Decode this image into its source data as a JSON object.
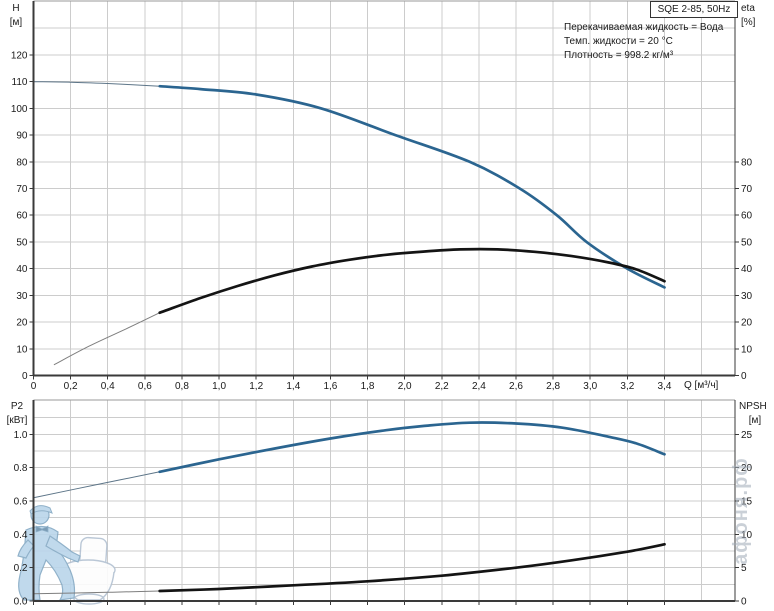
{
  "header": {
    "model": "SQE 2-85, 50Hz"
  },
  "info": {
    "lines": [
      "Перекачиваемая жидкость = Вода",
      "Темп. жидкости = 20 °C",
      "Плотность = 998.2 кг/м³"
    ]
  },
  "watermark": {
    "text": "афоня.рф"
  },
  "colors": {
    "curve_blue": "#2b6590",
    "curve_black": "#141414",
    "thin_blue": "#5d7588",
    "thin_black": "#7e7e7e",
    "grid": "#cccccc",
    "axis": "#3a3a3a",
    "frame_light": "#9a9a9a",
    "watermark_fill": "#bad5ea",
    "watermark_stroke": "#84a9c4",
    "toilet_stroke": "#b3c2d2"
  },
  "axes": {
    "top": {
      "left_label": "H",
      "left_unit": "[м]",
      "right_label": "eta",
      "right_unit": "[%]",
      "x_label": "Q [м³/ч]"
    },
    "bottom": {
      "left_label": "P2",
      "left_unit": "[кВт]",
      "right_label": "NPSH",
      "right_unit": "[м]"
    }
  },
  "chart_data": [
    {
      "type": "line",
      "title": "SQE 2-85, 50Hz",
      "xlabel": "Q [м³/ч]",
      "ylabel_left": "H [м]",
      "ylabel_right": "eta [%]",
      "xlim": [
        0,
        3.78
      ],
      "ylim_left": [
        0,
        140.2
      ],
      "ylim_right": [
        0,
        140.2
      ],
      "grid": true,
      "x_ticks": [
        {
          "v": 0,
          "t": "0"
        },
        {
          "v": 0.2,
          "t": "0,2"
        },
        {
          "v": 0.4,
          "t": "0,4"
        },
        {
          "v": 0.6,
          "t": "0,6"
        },
        {
          "v": 0.8,
          "t": "0,8"
        },
        {
          "v": 1.0,
          "t": "1,0"
        },
        {
          "v": 1.2,
          "t": "1,2"
        },
        {
          "v": 1.4,
          "t": "1,4"
        },
        {
          "v": 1.6,
          "t": "1,6"
        },
        {
          "v": 1.8,
          "t": "1,8"
        },
        {
          "v": 2.0,
          "t": "2,0"
        },
        {
          "v": 2.2,
          "t": "2,2"
        },
        {
          "v": 2.4,
          "t": "2,4"
        },
        {
          "v": 2.6,
          "t": "2,6"
        },
        {
          "v": 2.8,
          "t": "2,8"
        },
        {
          "v": 3.0,
          "t": "3,0"
        },
        {
          "v": 3.2,
          "t": "3,2"
        },
        {
          "v": 3.4,
          "t": "3,4"
        }
      ],
      "left_ticks": [
        {
          "v": 0,
          "t": "0"
        },
        {
          "v": 10,
          "t": "10"
        },
        {
          "v": 20,
          "t": "20"
        },
        {
          "v": 30,
          "t": "30"
        },
        {
          "v": 40,
          "t": "40"
        },
        {
          "v": 50,
          "t": "50"
        },
        {
          "v": 60,
          "t": "60"
        },
        {
          "v": 70,
          "t": "70"
        },
        {
          "v": 80,
          "t": "80"
        },
        {
          "v": 90,
          "t": "90"
        },
        {
          "v": 100,
          "t": "100"
        },
        {
          "v": 110,
          "t": "110"
        },
        {
          "v": 120,
          "t": "120"
        }
      ],
      "right_ticks": [
        {
          "v": 0,
          "t": "0"
        },
        {
          "v": 10,
          "t": "10"
        },
        {
          "v": 20,
          "t": "20"
        },
        {
          "v": 30,
          "t": "30"
        },
        {
          "v": 40,
          "t": "40"
        },
        {
          "v": 50,
          "t": "50"
        },
        {
          "v": 60,
          "t": "60"
        },
        {
          "v": 70,
          "t": "70"
        },
        {
          "v": 80,
          "t": "80"
        }
      ],
      "series": [
        {
          "name": "H",
          "axis": "left",
          "color_key": "curve_blue",
          "thin_color_key": "thin_blue",
          "thin_until_q": 0.68,
          "points": [
            [
              0,
              110
            ],
            [
              0.2,
              109.8
            ],
            [
              0.4,
              109.3
            ],
            [
              0.68,
              108.3
            ],
            [
              0.9,
              107.2
            ],
            [
              1.2,
              105.2
            ],
            [
              1.55,
              100
            ],
            [
              1.95,
              90
            ],
            [
              2.35,
              80
            ],
            [
              2.62,
              70
            ],
            [
              2.82,
              60
            ],
            [
              2.98,
              50
            ],
            [
              3.2,
              40
            ],
            [
              3.4,
              33
            ]
          ]
        },
        {
          "name": "eta",
          "axis": "left",
          "color_key": "curve_black",
          "thin_color_key": "thin_black",
          "thin_until_q": 0.68,
          "points": [
            [
              0.11,
              4
            ],
            [
              0.3,
              11
            ],
            [
              0.5,
              17.5
            ],
            [
              0.68,
              23.5
            ],
            [
              0.9,
              29
            ],
            [
              1.1,
              33.5
            ],
            [
              1.3,
              37.5
            ],
            [
              1.5,
              40.8
            ],
            [
              1.7,
              43.3
            ],
            [
              1.9,
              45.2
            ],
            [
              2.1,
              46.4
            ],
            [
              2.3,
              47.2
            ],
            [
              2.5,
              47.2
            ],
            [
              2.7,
              46.3
            ],
            [
              2.9,
              44.7
            ],
            [
              3.1,
              42.3
            ],
            [
              3.25,
              39.7
            ],
            [
              3.4,
              35.3
            ]
          ]
        }
      ],
      "annotations": [
        "Перекачиваемая жидкость = Вода",
        "Темп. жидкости = 20 °C",
        "Плотность = 998.2 кг/м³"
      ]
    },
    {
      "type": "line",
      "title": "",
      "xlabel": "",
      "ylabel_left": "P2 [кВт]",
      "ylabel_right": "NPSH [м]",
      "xlim": [
        0,
        3.78
      ],
      "ylim_left": [
        0,
        1.206
      ],
      "ylim_right": [
        0,
        30.15
      ],
      "grid": true,
      "x_ticks": [
        {
          "v": 0,
          "t": ""
        },
        {
          "v": 0.2,
          "t": ""
        },
        {
          "v": 0.4,
          "t": ""
        },
        {
          "v": 0.6,
          "t": ""
        },
        {
          "v": 0.8,
          "t": ""
        },
        {
          "v": 1.0,
          "t": ""
        },
        {
          "v": 1.2,
          "t": ""
        },
        {
          "v": 1.4,
          "t": ""
        },
        {
          "v": 1.6,
          "t": ""
        },
        {
          "v": 1.8,
          "t": ""
        },
        {
          "v": 2.0,
          "t": ""
        },
        {
          "v": 2.2,
          "t": ""
        },
        {
          "v": 2.4,
          "t": ""
        },
        {
          "v": 2.6,
          "t": ""
        },
        {
          "v": 2.8,
          "t": ""
        },
        {
          "v": 3.0,
          "t": ""
        },
        {
          "v": 3.2,
          "t": ""
        },
        {
          "v": 3.4,
          "t": ""
        }
      ],
      "left_ticks": [
        {
          "v": 0,
          "t": "0.0"
        },
        {
          "v": 0.2,
          "t": "0.2"
        },
        {
          "v": 0.4,
          "t": "0.4"
        },
        {
          "v": 0.6,
          "t": "0.6"
        },
        {
          "v": 0.8,
          "t": "0.8"
        },
        {
          "v": 1.0,
          "t": "1.0"
        }
      ],
      "right_ticks": [
        {
          "v": 0,
          "t": "0"
        },
        {
          "v": 5,
          "t": "5"
        },
        {
          "v": 10,
          "t": "10"
        },
        {
          "v": 15,
          "t": "15"
        },
        {
          "v": 20,
          "t": "20"
        },
        {
          "v": 25,
          "t": "25"
        }
      ],
      "series": [
        {
          "name": "P2",
          "axis": "left",
          "color_key": "curve_blue",
          "thin_color_key": "thin_blue",
          "thin_until_q": 0.68,
          "points": [
            [
              0,
              0.62
            ],
            [
              0.35,
              0.7
            ],
            [
              0.68,
              0.775
            ],
            [
              1.0,
              0.85
            ],
            [
              1.3,
              0.915
            ],
            [
              1.6,
              0.975
            ],
            [
              1.9,
              1.025
            ],
            [
              2.1,
              1.05
            ],
            [
              2.35,
              1.07
            ],
            [
              2.6,
              1.065
            ],
            [
              2.85,
              1.04
            ],
            [
              3.1,
              0.985
            ],
            [
              3.25,
              0.945
            ],
            [
              3.4,
              0.88
            ]
          ]
        },
        {
          "name": "NPSH",
          "axis": "right",
          "color_key": "curve_black",
          "thin_color_key": "thin_black",
          "thin_until_q": 0.68,
          "points": [
            [
              0,
              1.1
            ],
            [
              0.4,
              1.3
            ],
            [
              0.68,
              1.5
            ],
            [
              1.0,
              1.8
            ],
            [
              1.4,
              2.35
            ],
            [
              1.8,
              2.95
            ],
            [
              2.2,
              3.8
            ],
            [
              2.6,
              5.0
            ],
            [
              2.9,
              6.1
            ],
            [
              3.2,
              7.4
            ],
            [
              3.4,
              8.5
            ]
          ]
        }
      ]
    }
  ]
}
